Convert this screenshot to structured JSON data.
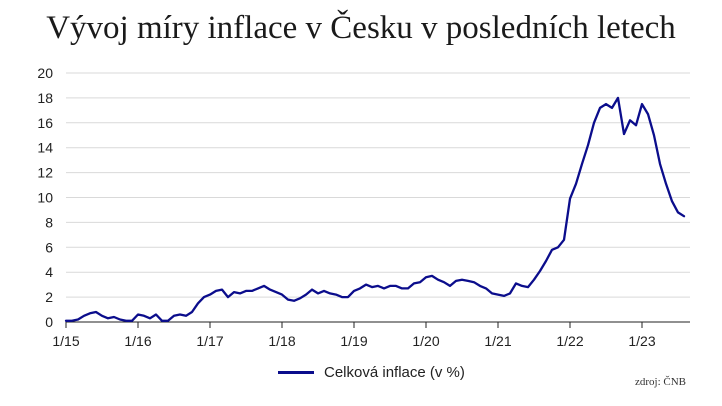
{
  "title": "Vývoj míry inflace v Česku v posledních letech",
  "source": "zdroj: ČNB",
  "chart_data": {
    "type": "line",
    "title": "Vývoj míry inflace v Česku v posledních letech",
    "xlabel": "",
    "ylabel": "",
    "x_tick_labels": [
      "1/15",
      "1/16",
      "1/17",
      "1/18",
      "1/19",
      "1/20",
      "1/21",
      "1/22",
      "1/23"
    ],
    "y_ticks": [
      0,
      2,
      4,
      6,
      8,
      10,
      12,
      14,
      16,
      18,
      20
    ],
    "ylim": [
      0,
      20
    ],
    "grid": "horizontal",
    "legend_position": "bottom",
    "color": "#0b0d8c",
    "series": [
      {
        "name": "Celková inflace (v %)",
        "start": "2015-01",
        "frequency": "monthly",
        "values": [
          0.1,
          0.1,
          0.2,
          0.5,
          0.7,
          0.8,
          0.5,
          0.3,
          0.4,
          0.2,
          0.1,
          0.1,
          0.6,
          0.5,
          0.3,
          0.6,
          0.1,
          0.1,
          0.5,
          0.6,
          0.5,
          0.8,
          1.5,
          2.0,
          2.2,
          2.5,
          2.6,
          2.0,
          2.4,
          2.3,
          2.5,
          2.5,
          2.7,
          2.9,
          2.6,
          2.4,
          2.2,
          1.8,
          1.7,
          1.9,
          2.2,
          2.6,
          2.3,
          2.5,
          2.3,
          2.2,
          2.0,
          2.0,
          2.5,
          2.7,
          3.0,
          2.8,
          2.9,
          2.7,
          2.9,
          2.9,
          2.7,
          2.7,
          3.1,
          3.2,
          3.6,
          3.7,
          3.4,
          3.2,
          2.9,
          3.3,
          3.4,
          3.3,
          3.2,
          2.9,
          2.7,
          2.3,
          2.2,
          2.1,
          2.3,
          3.1,
          2.9,
          2.8,
          3.4,
          4.1,
          4.9,
          5.8,
          6.0,
          6.6,
          9.9,
          11.1,
          12.7,
          14.2,
          16.0,
          17.2,
          17.5,
          17.2,
          18.0,
          15.1,
          16.2,
          15.8,
          17.5,
          16.7,
          15.0,
          12.7,
          11.1,
          9.7,
          8.8,
          8.5
        ]
      }
    ]
  }
}
